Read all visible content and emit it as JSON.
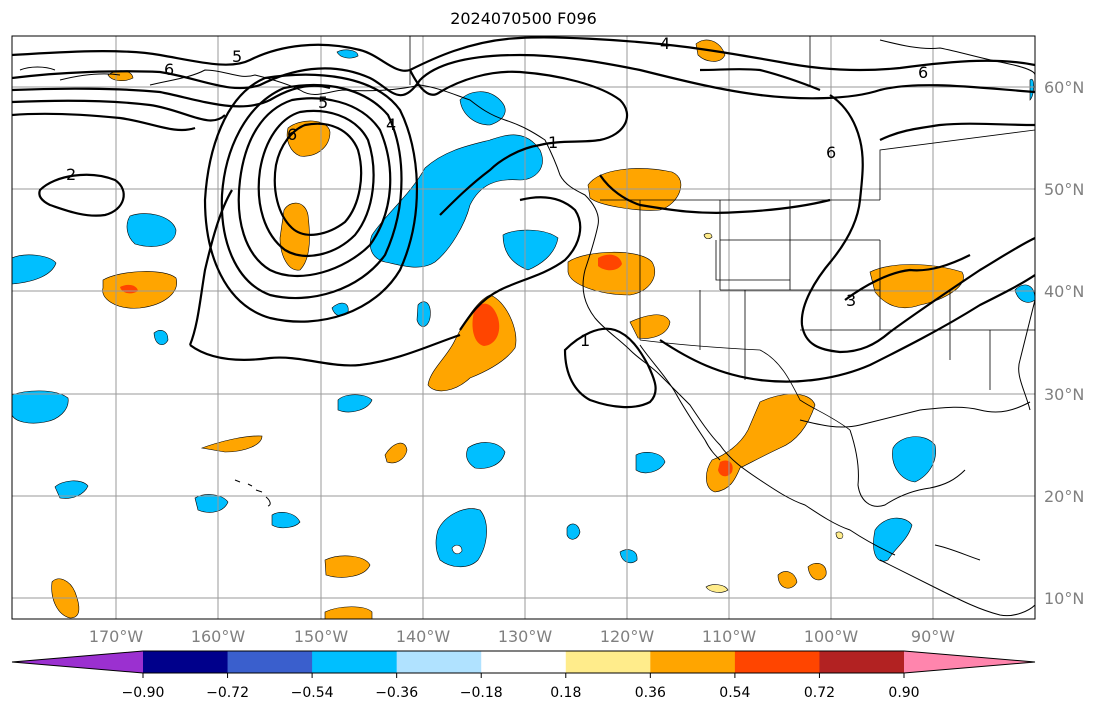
{
  "title": "2024070500 F096",
  "lat_labels": [
    "60°N",
    "50°N",
    "40°N",
    "30°N",
    "20°N",
    "10°N"
  ],
  "lon_labels": [
    "170°W",
    "160°W",
    "150°W",
    "140°W",
    "130°W",
    "120°W",
    "110°W",
    "100°W",
    "90°W"
  ],
  "colorbar": {
    "ticks": [
      "−0.90",
      "−0.72",
      "−0.54",
      "−0.36",
      "−0.18",
      "0.18",
      "0.36",
      "0.54",
      "0.72",
      "0.90"
    ],
    "colors": [
      "#9b30d0",
      "#00008b",
      "#3a5fcd",
      "#00bfff",
      "#b0e2ff",
      "#ffffff",
      "#ffec8b",
      "#ffa500",
      "#ff4500",
      "#b22222",
      "#ff85ad"
    ]
  },
  "contour_labels": [
    "5",
    "6",
    "5",
    "6",
    "4",
    "2",
    "1",
    "1",
    "4",
    "6",
    "6",
    "3"
  ],
  "colors": {
    "grid": "#9a9a9a",
    "axis_label": "#808080"
  }
}
